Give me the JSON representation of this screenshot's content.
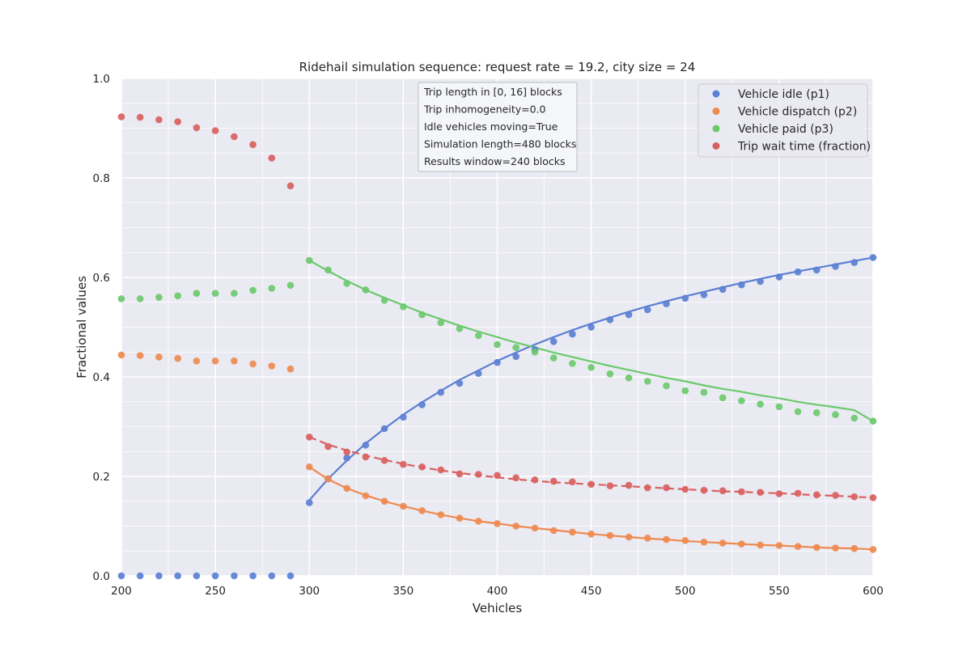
{
  "chart_data": {
    "type": "scatter",
    "title": "Ridehail simulation sequence: request rate = 19.2, city size = 24",
    "xlabel": "Vehicles",
    "ylabel": "Fractional values",
    "xlim": [
      200,
      600
    ],
    "ylim": [
      0.0,
      1.0
    ],
    "xticks": [
      "200",
      "250",
      "300",
      "350",
      "400",
      "450",
      "500",
      "550",
      "600"
    ],
    "yticks": [
      "0.0",
      "0.2",
      "0.4",
      "0.6",
      "0.8",
      "1.0"
    ],
    "grid": true,
    "legend_position": "top-right",
    "info_box": [
      "Trip length in [0, 16] blocks",
      "Trip inhomogeneity=0.0",
      "Idle vehicles moving=True",
      "Simulation length=480 blocks",
      "Results window=240 blocks"
    ],
    "x": [
      200,
      210,
      220,
      230,
      240,
      250,
      260,
      270,
      280,
      290,
      300,
      310,
      320,
      330,
      340,
      350,
      360,
      370,
      380,
      390,
      400,
      410,
      420,
      430,
      440,
      450,
      460,
      470,
      480,
      490,
      500,
      510,
      520,
      530,
      540,
      550,
      560,
      570,
      580,
      590,
      600
    ],
    "fit_start_x": 300,
    "series": [
      {
        "name": "Vehicle idle (p1)",
        "color": "#5b7fd3",
        "fit_style": "solid",
        "values": [
          0.0,
          0.0,
          0.0,
          0.0,
          0.0,
          0.0,
          0.0,
          0.0,
          0.0,
          0.0,
          0.147,
          0.195,
          0.237,
          0.263,
          0.296,
          0.319,
          0.344,
          0.369,
          0.387,
          0.407,
          0.429,
          0.441,
          0.455,
          0.471,
          0.486,
          0.5,
          0.515,
          0.525,
          0.535,
          0.547,
          0.558,
          0.565,
          0.576,
          0.585,
          0.592,
          0.601,
          0.611,
          0.615,
          0.622,
          0.63,
          0.64
        ],
        "fit": [
          0.152,
          0.195,
          0.232,
          0.266,
          0.296,
          0.324,
          0.349,
          0.372,
          0.394,
          0.413,
          0.432,
          0.449,
          0.465,
          0.48,
          0.494,
          0.507,
          0.519,
          0.531,
          0.542,
          0.552,
          0.562,
          0.571,
          0.58,
          0.589,
          0.597,
          0.605,
          0.612,
          0.619,
          0.626,
          0.633,
          0.64
        ]
      },
      {
        "name": "Vehicle dispatch (p2)",
        "color": "#ee8a50",
        "fit_style": "solid",
        "values": [
          0.444,
          0.443,
          0.44,
          0.437,
          0.432,
          0.432,
          0.432,
          0.426,
          0.422,
          0.416,
          0.219,
          0.195,
          0.176,
          0.161,
          0.15,
          0.14,
          0.131,
          0.123,
          0.116,
          0.11,
          0.105,
          0.1,
          0.096,
          0.091,
          0.088,
          0.084,
          0.081,
          0.078,
          0.076,
          0.073,
          0.071,
          0.068,
          0.066,
          0.064,
          0.062,
          0.061,
          0.059,
          0.057,
          0.056,
          0.055,
          0.053
        ],
        "fit": [
          0.219,
          0.194,
          0.176,
          0.162,
          0.15,
          0.14,
          0.131,
          0.123,
          0.116,
          0.11,
          0.105,
          0.1,
          0.096,
          0.092,
          0.088,
          0.084,
          0.081,
          0.078,
          0.075,
          0.073,
          0.07,
          0.068,
          0.066,
          0.064,
          0.062,
          0.061,
          0.059,
          0.057,
          0.056,
          0.055,
          0.053
        ]
      },
      {
        "name": "Vehicle paid (p3)",
        "color": "#6cc96c",
        "fit_style": "solid",
        "values": [
          0.557,
          0.557,
          0.56,
          0.563,
          0.568,
          0.568,
          0.568,
          0.574,
          0.578,
          0.584,
          0.634,
          0.615,
          0.588,
          0.575,
          0.554,
          0.541,
          0.525,
          0.509,
          0.497,
          0.483,
          0.465,
          0.459,
          0.45,
          0.438,
          0.427,
          0.419,
          0.406,
          0.398,
          0.391,
          0.382,
          0.372,
          0.369,
          0.358,
          0.352,
          0.345,
          0.34,
          0.33,
          0.328,
          0.324,
          0.317,
          0.311
        ],
        "fit": [
          0.634,
          0.613,
          0.593,
          0.575,
          0.559,
          0.544,
          0.529,
          0.516,
          0.503,
          0.491,
          0.48,
          0.469,
          0.459,
          0.449,
          0.44,
          0.431,
          0.422,
          0.414,
          0.406,
          0.398,
          0.391,
          0.383,
          0.376,
          0.37,
          0.363,
          0.357,
          0.35,
          0.344,
          0.339,
          0.333,
          0.311
        ]
      },
      {
        "name": "Trip wait time (fraction)",
        "color": "#d9605f",
        "fit_style": "dashed",
        "values": [
          0.923,
          0.922,
          0.917,
          0.913,
          0.901,
          0.895,
          0.883,
          0.867,
          0.84,
          0.784,
          0.279,
          0.26,
          0.249,
          0.239,
          0.232,
          0.224,
          0.219,
          0.213,
          0.205,
          0.204,
          0.202,
          0.197,
          0.193,
          0.19,
          0.189,
          0.184,
          0.181,
          0.182,
          0.177,
          0.177,
          0.174,
          0.172,
          0.171,
          0.169,
          0.168,
          0.165,
          0.166,
          0.163,
          0.162,
          0.159,
          0.157
        ],
        "fit": [
          0.279,
          0.264,
          0.252,
          0.242,
          0.233,
          0.225,
          0.218,
          0.212,
          0.207,
          0.202,
          0.198,
          0.194,
          0.191,
          0.188,
          0.186,
          0.184,
          0.182,
          0.18,
          0.178,
          0.176,
          0.174,
          0.172,
          0.17,
          0.169,
          0.167,
          0.166,
          0.164,
          0.162,
          0.161,
          0.159,
          0.157
        ]
      }
    ]
  }
}
